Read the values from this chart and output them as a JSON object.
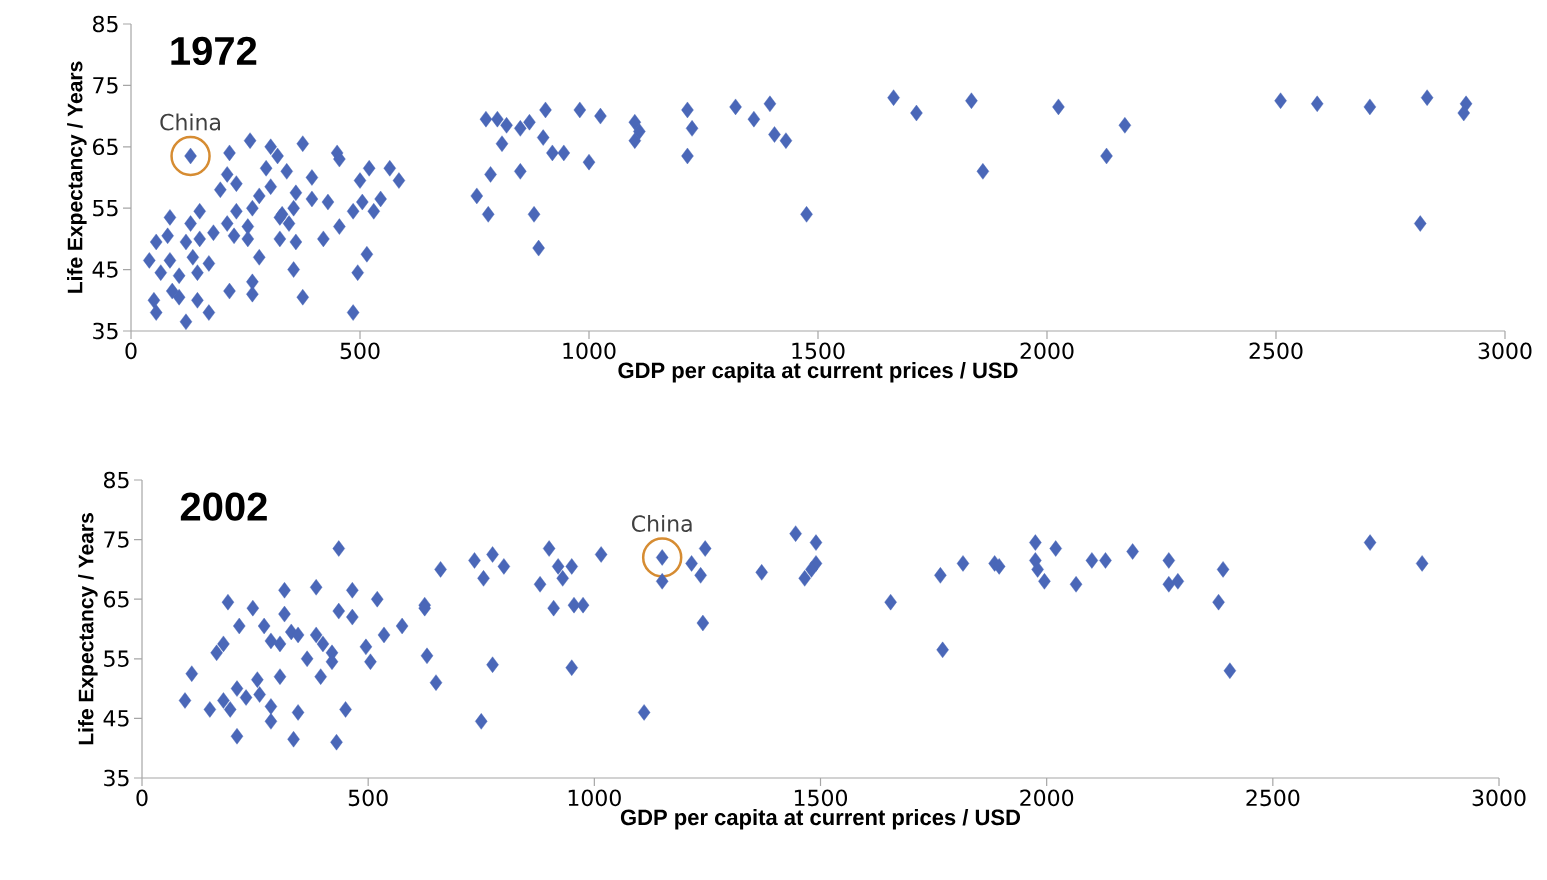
{
  "chart_data": [
    {
      "type": "scatter",
      "title": "1972",
      "xlabel": "GDP per capita at current prices / USD",
      "ylabel": "Life Expectancy / Years",
      "color": "#4a67b8",
      "marker": "diamond",
      "xlim": [
        0,
        3000
      ],
      "ylim": [
        35,
        85
      ],
      "xticks": [
        0,
        500,
        1000,
        1500,
        2000,
        2500,
        3000
      ],
      "yticks": [
        35,
        45,
        55,
        65,
        75,
        85
      ],
      "annotations": [
        {
          "text": "China",
          "x": 130,
          "y": 63.5
        }
      ],
      "x": [
        130,
        215,
        260,
        305,
        320,
        375,
        450,
        520,
        565,
        585,
        500,
        455,
        395,
        340,
        295,
        210,
        230,
        195,
        305,
        280,
        360,
        395,
        430,
        355,
        505,
        545,
        485,
        330,
        265,
        230,
        150,
        130,
        85,
        210,
        255,
        325,
        345,
        455,
        530,
        80,
        55,
        120,
        150,
        180,
        225,
        255,
        325,
        360,
        420,
        40,
        85,
        135,
        170,
        280,
        355,
        495,
        515,
        65,
        105,
        145,
        215,
        265,
        265,
        375,
        50,
        105,
        145,
        55,
        120,
        170,
        485,
        90,
        775,
        800,
        820,
        850,
        870,
        905,
        900,
        920,
        945,
        810,
        785,
        850,
        755,
        780,
        880,
        890,
        980,
        1025,
        1000,
        1100,
        1110,
        1100,
        1215,
        1225,
        1215,
        1320,
        1360,
        1395,
        1405,
        1430,
        1475,
        1665,
        1715,
        1835,
        1860,
        2025,
        2170,
        2130,
        2510,
        2590,
        2705,
        2830,
        2915,
        2910,
        2815
      ],
      "values": [
        63.5,
        64,
        66,
        65,
        63.5,
        65.5,
        64,
        61.5,
        61.5,
        59.5,
        59.5,
        63,
        60,
        61,
        61.5,
        60.5,
        59,
        58,
        58.5,
        57,
        57.5,
        56.5,
        56,
        55,
        56,
        56.5,
        54.5,
        54,
        55,
        54.5,
        54.5,
        52.5,
        53.5,
        52.5,
        52,
        53.5,
        52.5,
        52,
        54.5,
        50.5,
        49.5,
        49.5,
        50,
        51,
        50.5,
        50,
        50,
        49.5,
        50,
        46.5,
        46.5,
        47,
        46,
        47,
        45,
        44.5,
        47.5,
        44.5,
        44,
        44.5,
        41.5,
        43,
        41,
        40.5,
        40,
        40.5,
        40,
        38,
        36.5,
        38,
        38,
        41.5,
        69.5,
        69.5,
        68.5,
        68,
        69,
        71,
        66.5,
        64,
        64,
        65.5,
        60.5,
        61,
        57,
        54,
        54,
        48.5,
        71,
        70,
        62.5,
        69,
        67.5,
        66,
        71,
        68,
        63.5,
        71.5,
        69.5,
        72,
        67,
        66,
        54,
        73,
        70.5,
        72.5,
        61,
        71.5,
        68.5,
        63.5,
        72.5,
        72,
        71.5,
        73,
        72,
        70.5,
        52.5
      ]
    },
    {
      "type": "scatter",
      "title": "2002",
      "xlabel": "GDP per capita at current prices / USD",
      "ylabel": "Life Expectancy / Years",
      "color": "#4a67b8",
      "marker": "diamond",
      "xlim": [
        0,
        3000
      ],
      "ylim": [
        35,
        85
      ],
      "xticks": [
        0,
        500,
        1000,
        1500,
        2000,
        2500,
        3000
      ],
      "yticks": [
        35,
        45,
        55,
        65,
        75,
        85
      ],
      "annotations": [
        {
          "text": "China",
          "x": 1150,
          "y": 72
        }
      ],
      "x": [
        435,
        190,
        245,
        315,
        385,
        465,
        520,
        315,
        435,
        465,
        215,
        270,
        330,
        285,
        305,
        345,
        385,
        400,
        420,
        180,
        165,
        365,
        420,
        495,
        505,
        535,
        575,
        625,
        625,
        110,
        305,
        395,
        95,
        150,
        180,
        210,
        195,
        230,
        255,
        260,
        285,
        285,
        345,
        450,
        210,
        335,
        430,
        660,
        735,
        775,
        800,
        755,
        630,
        650,
        775,
        750,
        900,
        920,
        950,
        930,
        880,
        910,
        955,
        975,
        950,
        1015,
        1150,
        1150,
        1110,
        1245,
        1215,
        1235,
        1240,
        1370,
        1445,
        1490,
        1490,
        1480,
        1465,
        1655,
        1765,
        1815,
        1885,
        1895,
        1770,
        1975,
        2020,
        1975,
        1980,
        1995,
        2065,
        2100,
        2130,
        2190,
        2270,
        2270,
        2290,
        2390,
        2380,
        2405,
        2715,
        2830
      ],
      "values": [
        73.5,
        64.5,
        63.5,
        66.5,
        67,
        66.5,
        65,
        62.5,
        63,
        62,
        60.5,
        60.5,
        59.5,
        58,
        57.5,
        59,
        59,
        57.5,
        56,
        57.5,
        56,
        55,
        54.5,
        57,
        54.5,
        59,
        60.5,
        64,
        63.5,
        52.5,
        52,
        52,
        48,
        46.5,
        48,
        50,
        46.5,
        48.5,
        51.5,
        49,
        47,
        44.5,
        46,
        46.5,
        42,
        41.5,
        41,
        70,
        71.5,
        72.5,
        70.5,
        68.5,
        55.5,
        51,
        54,
        44.5,
        73.5,
        70.5,
        70.5,
        68.5,
        67.5,
        63.5,
        64,
        64,
        53.5,
        72.5,
        72,
        68,
        46,
        73.5,
        71,
        69,
        61,
        69.5,
        76,
        74.5,
        71,
        70,
        68.5,
        64.5,
        69,
        71,
        71,
        70.5,
        56.5,
        74.5,
        73.5,
        71.5,
        70,
        68,
        67.5,
        71.5,
        71.5,
        73,
        71.5,
        67.5,
        68,
        70,
        64.5,
        53,
        74.5,
        71
      ]
    }
  ]
}
